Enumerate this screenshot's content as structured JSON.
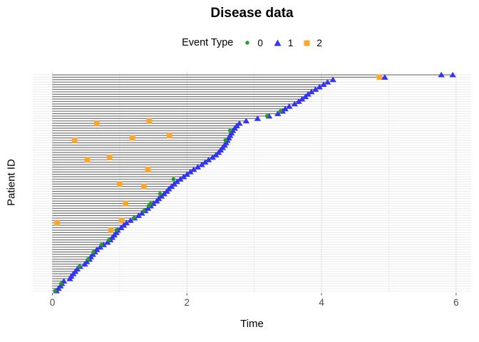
{
  "title": "Disease data",
  "legend": {
    "title": "Event Type",
    "items": [
      {
        "label": "0",
        "shape": "circle"
      },
      {
        "label": "1",
        "shape": "triangle"
      },
      {
        "label": "2",
        "shape": "square"
      }
    ]
  },
  "chart_data": {
    "type": "scatter",
    "title": "Disease data",
    "xlabel": "Time",
    "ylabel": "Patient ID",
    "x_ticks": [
      0,
      2,
      4,
      6
    ],
    "x_minor_ticks": [
      1,
      3,
      5
    ],
    "xlim": [
      -0.3,
      6.25
    ],
    "n_patients": 90,
    "grid": "on",
    "legend_position": "top",
    "colors": {
      "event0": "#1f9e1f",
      "event1": "#3535ee",
      "event2": "#ffa62e",
      "timeline": "#6a6a6a",
      "row_grid": "#e9e9e9",
      "vgrid_major": "#e3e3e3",
      "vgrid_minor": "#f1f1f1",
      "axis_text": "#4d4d4d"
    },
    "patients_note": "rows ordered bottom (index 0) to top; end = last event time (triangle, type 1); e0 = type-0 times (green dot); e2 = type-2 times (orange square); e1_extra = additional type-1 times",
    "patients": [
      {
        "end": 0.06,
        "e0": [
          0.04
        ]
      },
      {
        "end": 0.09
      },
      {
        "end": 0.12
      },
      {
        "end": 0.14,
        "e0": [
          0.13
        ]
      },
      {
        "end": 0.17
      },
      {
        "end": 0.26
      },
      {
        "end": 0.28
      },
      {
        "end": 0.31
      },
      {
        "end": 0.34
      },
      {
        "end": 0.37
      },
      {
        "end": 0.41,
        "e0": [
          0.4
        ]
      },
      {
        "end": 0.48
      },
      {
        "end": 0.51
      },
      {
        "end": 0.55,
        "e0": [
          0.53
        ]
      },
      {
        "end": 0.57
      },
      {
        "end": 0.6
      },
      {
        "end": 0.63,
        "e0": [
          0.61
        ]
      },
      {
        "end": 0.66
      },
      {
        "end": 0.71
      },
      {
        "end": 0.76,
        "e0": [
          0.73
        ]
      },
      {
        "end": 0.82
      },
      {
        "end": 0.86,
        "e0": [
          0.84
        ]
      },
      {
        "end": 0.89
      },
      {
        "end": 0.92
      },
      {
        "end": 0.95
      },
      {
        "end": 0.97,
        "e0": [
          0.95
        ],
        "e2": [
          0.87
        ]
      },
      {
        "end": 1.02
      },
      {
        "end": 1.06
      },
      {
        "end": 1.1,
        "e2": [
          0.07
        ]
      },
      {
        "end": 1.16,
        "e2": [
          1.03
        ]
      },
      {
        "end": 1.22,
        "e0": [
          1.21
        ]
      },
      {
        "end": 1.28
      },
      {
        "end": 1.33
      },
      {
        "end": 1.38,
        "e0": [
          1.36
        ]
      },
      {
        "end": 1.42
      },
      {
        "end": 1.46,
        "e0": [
          1.43
        ]
      },
      {
        "end": 1.5,
        "e0": [
          1.46
        ],
        "e2": [
          1.09
        ]
      },
      {
        "end": 1.55
      },
      {
        "end": 1.58
      },
      {
        "end": 1.62
      },
      {
        "end": 1.66,
        "e0": [
          1.6
        ]
      },
      {
        "end": 1.7
      },
      {
        "end": 1.73
      },
      {
        "end": 1.77,
        "e2": [
          1.36
        ]
      },
      {
        "end": 1.81,
        "e2": [
          1.0
        ]
      },
      {
        "end": 1.85
      },
      {
        "end": 1.9,
        "e0": [
          1.8
        ]
      },
      {
        "end": 1.95
      },
      {
        "end": 2.0
      },
      {
        "end": 2.05
      },
      {
        "end": 2.1,
        "e2": [
          1.42
        ]
      },
      {
        "end": 2.16
      },
      {
        "end": 2.22
      },
      {
        "end": 2.27
      },
      {
        "end": 2.32,
        "e2": [
          0.52
        ]
      },
      {
        "end": 2.38,
        "e2": [
          0.85
        ]
      },
      {
        "end": 2.43
      },
      {
        "end": 2.47
      },
      {
        "end": 2.5
      },
      {
        "end": 2.53
      },
      {
        "end": 2.56
      },
      {
        "end": 2.58
      },
      {
        "end": 2.6,
        "e0": [
          2.57
        ],
        "e2": [
          0.33
        ]
      },
      {
        "end": 2.62,
        "e2": [
          1.19
        ]
      },
      {
        "end": 2.64,
        "e2": [
          1.74
        ]
      },
      {
        "end": 2.66
      },
      {
        "end": 2.68,
        "e0": [
          2.64
        ]
      },
      {
        "end": 2.71
      },
      {
        "end": 2.74
      },
      {
        "end": 2.78,
        "e2": [
          0.66
        ]
      },
      {
        "end": 2.88,
        "e2": [
          1.44
        ]
      },
      {
        "end": 3.05
      },
      {
        "end": 3.22,
        "e0": [
          3.19
        ]
      },
      {
        "end": 3.35
      },
      {
        "end": 3.42,
        "e0": [
          3.39
        ]
      },
      {
        "end": 3.46
      },
      {
        "end": 3.52
      },
      {
        "end": 3.6
      },
      {
        "end": 3.66
      },
      {
        "end": 3.71
      },
      {
        "end": 3.76
      },
      {
        "end": 3.8
      },
      {
        "end": 3.85
      },
      {
        "end": 3.91
      },
      {
        "end": 3.97
      },
      {
        "end": 4.03
      },
      {
        "end": 4.09
      },
      {
        "end": 4.17
      },
      {
        "end": 4.94,
        "e2": [
          4.86
        ]
      },
      {
        "end": 5.95,
        "e1_extra": [
          5.78
        ]
      }
    ]
  }
}
